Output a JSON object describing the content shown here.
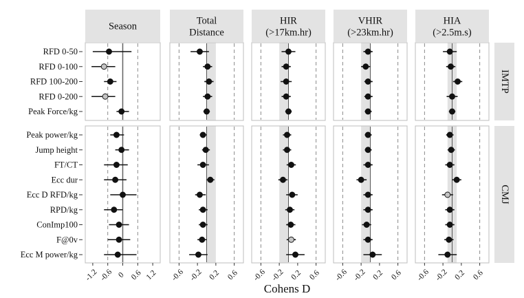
{
  "chart_data": {
    "type": "scatter",
    "subtype": "forest-plot",
    "xlabel": "Cohens D",
    "xticks": [
      "-1.2",
      "-0.6",
      "0.0",
      "0.6",
      "1.2"
    ],
    "xticks_small": [
      "-0.6",
      "-0.2",
      "0.2",
      "0.6"
    ],
    "facet_columns": [
      {
        "name": "Season",
        "title_lines": [
          "Season"
        ],
        "xlim": [
          -1.5,
          1.5
        ],
        "ticks": [
          -1.2,
          -0.6,
          0.0,
          0.6,
          1.2
        ],
        "shade": [
          -0.05,
          0.05
        ],
        "dashes": [
          -0.6,
          0.6
        ]
      },
      {
        "name": "Total Distance",
        "title_lines": [
          "Total",
          "Distance"
        ],
        "xlim": [
          -0.8,
          0.8
        ],
        "ticks": [
          -0.6,
          -0.2,
          0.2,
          0.6
        ],
        "shade": [
          0.0,
          0.2
        ],
        "dashes": [
          -0.6,
          0.6
        ]
      },
      {
        "name": "HIR (>17km.hr)",
        "title_lines": [
          "HIR",
          "(>17km.hr)"
        ],
        "xlim": [
          -0.8,
          0.8
        ],
        "ticks": [
          -0.6,
          -0.2,
          0.2,
          0.6
        ],
        "shade": [
          -0.2,
          0.0
        ],
        "dashes": [
          -0.6,
          0.6
        ]
      },
      {
        "name": "VHIR (>23km.hr)",
        "title_lines": [
          "VHIR",
          "(>23km.hr)"
        ],
        "xlim": [
          -0.8,
          0.8
        ],
        "ticks": [
          -0.6,
          -0.2,
          0.2,
          0.6
        ],
        "shade": [
          -0.2,
          0.0
        ],
        "dashes": [
          -0.6,
          0.6
        ]
      },
      {
        "name": "HIA (>2.5m.s)",
        "title_lines": [
          "HIA",
          "(>2.5m.s)"
        ],
        "xlim": [
          -0.8,
          0.8
        ],
        "ticks": [
          -0.6,
          -0.2,
          0.2,
          0.6
        ],
        "shade": [
          -0.1,
          0.1
        ],
        "dashes": [
          -0.6,
          0.6
        ]
      }
    ],
    "facet_rows": [
      {
        "name": "IMTP",
        "items": [
          "RFD 0-50",
          "RFD 0-100",
          "RFD 100-200",
          "RFD 0-200",
          "Peak Force/kg"
        ]
      },
      {
        "name": "CMJ",
        "items": [
          "Peak power/kg",
          "Jump height",
          "FT/CT",
          "Ecc dur",
          "Ecc D RFD/kg",
          "RPD/kg",
          "ConImp100",
          "F@0v",
          "Ecc M power/kg"
        ]
      }
    ],
    "point_colors": {
      "black": "#111111",
      "grey": "#c4c4c4"
    },
    "panels": {
      "Season": {
        "IMTP": [
          {
            "est": -0.55,
            "lo": -1.2,
            "hi": 0.35,
            "c": "black"
          },
          {
            "est": -0.75,
            "lo": -1.25,
            "hi": -0.3,
            "c": "grey"
          },
          {
            "est": -0.5,
            "lo": -0.75,
            "hi": -0.25,
            "c": "black"
          },
          {
            "est": -0.7,
            "lo": -1.25,
            "hi": -0.3,
            "c": "grey"
          },
          {
            "est": -0.05,
            "lo": -0.25,
            "hi": 0.25,
            "c": "black"
          }
        ],
        "CMJ": [
          {
            "est": -0.25,
            "lo": -0.5,
            "hi": 0.05,
            "c": "black"
          },
          {
            "est": -0.05,
            "lo": -0.3,
            "hi": 0.25,
            "c": "black"
          },
          {
            "est": -0.25,
            "lo": -0.75,
            "hi": 0.2,
            "c": "black"
          },
          {
            "est": -0.3,
            "lo": -0.75,
            "hi": 0.15,
            "c": "black"
          },
          {
            "est": 0.0,
            "lo": -0.5,
            "hi": 0.55,
            "c": "black"
          },
          {
            "est": -0.35,
            "lo": -0.75,
            "hi": 0.0,
            "c": "black"
          },
          {
            "est": -0.15,
            "lo": -0.55,
            "hi": 0.25,
            "c": "black"
          },
          {
            "est": -0.15,
            "lo": -0.6,
            "hi": 0.3,
            "c": "black"
          },
          {
            "est": -0.2,
            "lo": -0.75,
            "hi": 0.55,
            "c": "black"
          }
        ]
      },
      "Total Distance": {
        "IMTP": [
          {
            "est": -0.15,
            "lo": -0.35,
            "hi": 0.05,
            "c": "black"
          },
          {
            "est": 0.02,
            "lo": -0.08,
            "hi": 0.12,
            "c": "black"
          },
          {
            "est": 0.05,
            "lo": -0.05,
            "hi": 0.15,
            "c": "black"
          },
          {
            "est": 0.02,
            "lo": -0.08,
            "hi": 0.12,
            "c": "black"
          },
          {
            "est": 0.0,
            "lo": -0.07,
            "hi": 0.07,
            "c": "black"
          }
        ],
        "CMJ": [
          {
            "est": -0.08,
            "lo": -0.15,
            "hi": 0.0,
            "c": "black"
          },
          {
            "est": -0.02,
            "lo": -0.1,
            "hi": 0.07,
            "c": "black"
          },
          {
            "est": -0.08,
            "lo": -0.2,
            "hi": 0.05,
            "c": "black"
          },
          {
            "est": 0.08,
            "lo": 0.0,
            "hi": 0.17,
            "c": "black"
          },
          {
            "est": -0.15,
            "lo": -0.25,
            "hi": -0.02,
            "c": "black"
          },
          {
            "est": -0.08,
            "lo": -0.17,
            "hi": 0.02,
            "c": "black"
          },
          {
            "est": -0.08,
            "lo": -0.17,
            "hi": 0.02,
            "c": "black"
          },
          {
            "est": -0.1,
            "lo": -0.2,
            "hi": 0.0,
            "c": "black"
          },
          {
            "est": -0.18,
            "lo": -0.38,
            "hi": 0.02,
            "c": "black"
          }
        ]
      },
      "HIR (>17km.hr)": {
        "IMTP": [
          {
            "est": 0.0,
            "lo": -0.15,
            "hi": 0.15,
            "c": "black"
          },
          {
            "est": -0.05,
            "lo": -0.15,
            "hi": 0.05,
            "c": "black"
          },
          {
            "est": -0.05,
            "lo": -0.17,
            "hi": 0.07,
            "c": "black"
          },
          {
            "est": -0.05,
            "lo": -0.15,
            "hi": 0.05,
            "c": "black"
          },
          {
            "est": 0.0,
            "lo": -0.07,
            "hi": 0.07,
            "c": "black"
          }
        ],
        "CMJ": [
          {
            "est": -0.03,
            "lo": -0.12,
            "hi": 0.06,
            "c": "black"
          },
          {
            "est": -0.03,
            "lo": -0.12,
            "hi": 0.06,
            "c": "black"
          },
          {
            "est": 0.06,
            "lo": -0.04,
            "hi": 0.16,
            "c": "black"
          },
          {
            "est": -0.12,
            "lo": -0.22,
            "hi": -0.02,
            "c": "black"
          },
          {
            "est": 0.08,
            "lo": -0.05,
            "hi": 0.2,
            "c": "black"
          },
          {
            "est": 0.03,
            "lo": -0.07,
            "hi": 0.13,
            "c": "black"
          },
          {
            "est": 0.05,
            "lo": -0.05,
            "hi": 0.15,
            "c": "black"
          },
          {
            "est": 0.06,
            "lo": -0.04,
            "hi": 0.16,
            "c": "grey"
          },
          {
            "est": 0.15,
            "lo": -0.05,
            "hi": 0.35,
            "c": "black"
          }
        ]
      },
      "VHIR (>23km.hr)": {
        "IMTP": [
          {
            "est": -0.05,
            "lo": -0.15,
            "hi": 0.05,
            "c": "black"
          },
          {
            "est": -0.1,
            "lo": -0.2,
            "hi": 0.0,
            "c": "black"
          },
          {
            "est": -0.05,
            "lo": -0.13,
            "hi": 0.05,
            "c": "black"
          },
          {
            "est": -0.05,
            "lo": -0.13,
            "hi": 0.05,
            "c": "black"
          },
          {
            "est": -0.05,
            "lo": -0.12,
            "hi": 0.03,
            "c": "black"
          }
        ],
        "CMJ": [
          {
            "est": -0.05,
            "lo": -0.12,
            "hi": 0.03,
            "c": "black"
          },
          {
            "est": -0.05,
            "lo": -0.12,
            "hi": 0.03,
            "c": "black"
          },
          {
            "est": -0.05,
            "lo": -0.15,
            "hi": 0.05,
            "c": "black"
          },
          {
            "est": -0.2,
            "lo": -0.3,
            "hi": -0.08,
            "c": "black"
          },
          {
            "est": -0.05,
            "lo": -0.15,
            "hi": 0.05,
            "c": "black"
          },
          {
            "est": -0.05,
            "lo": -0.15,
            "hi": 0.05,
            "c": "black"
          },
          {
            "est": -0.08,
            "lo": -0.18,
            "hi": 0.02,
            "c": "black"
          },
          {
            "est": -0.05,
            "lo": -0.15,
            "hi": 0.05,
            "c": "black"
          },
          {
            "est": 0.05,
            "lo": -0.15,
            "hi": 0.25,
            "c": "black"
          }
        ]
      },
      "HIA (>2.5m.s)": {
        "IMTP": [
          {
            "est": -0.05,
            "lo": -0.2,
            "hi": 0.1,
            "c": "black"
          },
          {
            "est": -0.03,
            "lo": -0.13,
            "hi": 0.07,
            "c": "black"
          },
          {
            "est": 0.12,
            "lo": 0.02,
            "hi": 0.22,
            "c": "black"
          },
          {
            "est": 0.0,
            "lo": -0.12,
            "hi": 0.12,
            "c": "black"
          },
          {
            "est": 0.0,
            "lo": -0.07,
            "hi": 0.07,
            "c": "black"
          }
        ],
        "CMJ": [
          {
            "est": -0.05,
            "lo": -0.13,
            "hi": 0.03,
            "c": "black"
          },
          {
            "est": -0.02,
            "lo": -0.1,
            "hi": 0.06,
            "c": "black"
          },
          {
            "est": -0.05,
            "lo": -0.15,
            "hi": 0.05,
            "c": "black"
          },
          {
            "est": 0.1,
            "lo": 0.0,
            "hi": 0.2,
            "c": "black"
          },
          {
            "est": -0.1,
            "lo": -0.22,
            "hi": 0.02,
            "c": "grey"
          },
          {
            "est": -0.05,
            "lo": -0.15,
            "hi": 0.05,
            "c": "black"
          },
          {
            "est": -0.05,
            "lo": -0.15,
            "hi": 0.05,
            "c": "black"
          },
          {
            "est": -0.07,
            "lo": -0.17,
            "hi": 0.03,
            "c": "black"
          },
          {
            "est": -0.1,
            "lo": -0.3,
            "hi": 0.1,
            "c": "black"
          }
        ]
      }
    }
  }
}
